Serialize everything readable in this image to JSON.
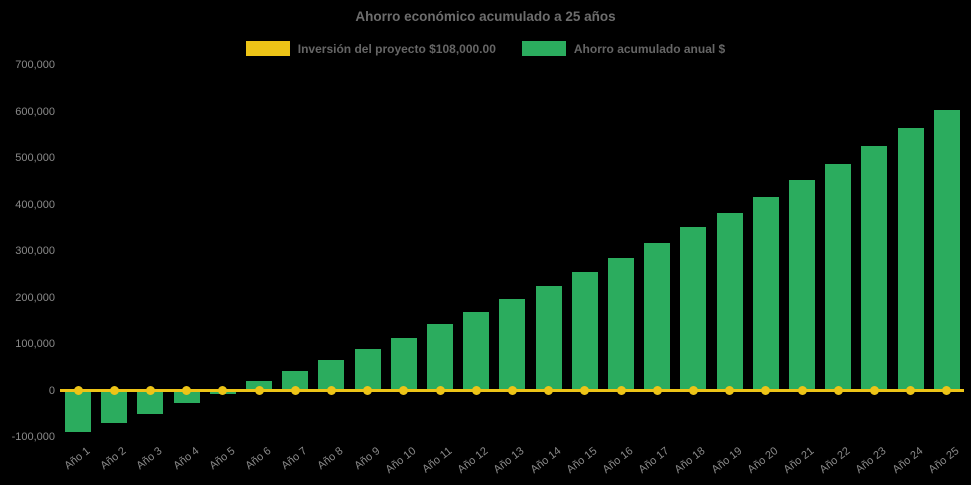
{
  "title": "Ahorro económico acumulado a 25 años",
  "legend": {
    "investment_label": "Inversión del proyecto $108,000.00",
    "savings_label": "Ahorro acumulado anual $"
  },
  "colors": {
    "background": "#000000",
    "bar_green": "#2BAC5E",
    "line_yellow": "#EDC417",
    "title_text": "#6d6d6d",
    "axis_text": "#8a8a8a"
  },
  "chart_data": {
    "type": "bar",
    "title": "Ahorro económico acumulado a 25 años",
    "xlabel": "",
    "ylabel": "",
    "ylim": [
      -100000,
      700000
    ],
    "ytick_step": 100000,
    "ytick_labels": [
      "700,000",
      "600,000",
      "500,000",
      "400,000",
      "300,000",
      "200,000",
      "100,000",
      "0",
      "-100,000"
    ],
    "grid": false,
    "legend_position": "top",
    "background": "black",
    "categories": [
      "Año 1",
      "Año 2",
      "Año 3",
      "Año 4",
      "Año 5",
      "Año 6",
      "Año 7",
      "Año 8",
      "Año 9",
      "Año 10",
      "Año 11",
      "Año 12",
      "Año 13",
      "Año 14",
      "Año 15",
      "Año 16",
      "Año 17",
      "Año 18",
      "Año 19",
      "Año 20",
      "Año 21",
      "Año 22",
      "Año 23",
      "Año 24",
      "Año 25"
    ],
    "series": [
      {
        "name": "Inversión del proyecto $108,000.00",
        "type": "line",
        "color": "#EDC417",
        "marker": "circle",
        "values": [
          0,
          0,
          0,
          0,
          0,
          0,
          0,
          0,
          0,
          0,
          0,
          0,
          0,
          0,
          0,
          0,
          0,
          0,
          0,
          0,
          0,
          0,
          0,
          0,
          0
        ]
      },
      {
        "name": "Ahorro acumulado anual $",
        "type": "bar",
        "color": "#2BAC5E",
        "values": [
          -90000,
          -70000,
          -50000,
          -27000,
          -8000,
          20000,
          42000,
          65000,
          89000,
          114000,
          143000,
          168000,
          196000,
          225000,
          255000,
          286000,
          317000,
          351000,
          383000,
          416000,
          454000,
          487000,
          526000,
          564000,
          604000
        ]
      }
    ]
  }
}
